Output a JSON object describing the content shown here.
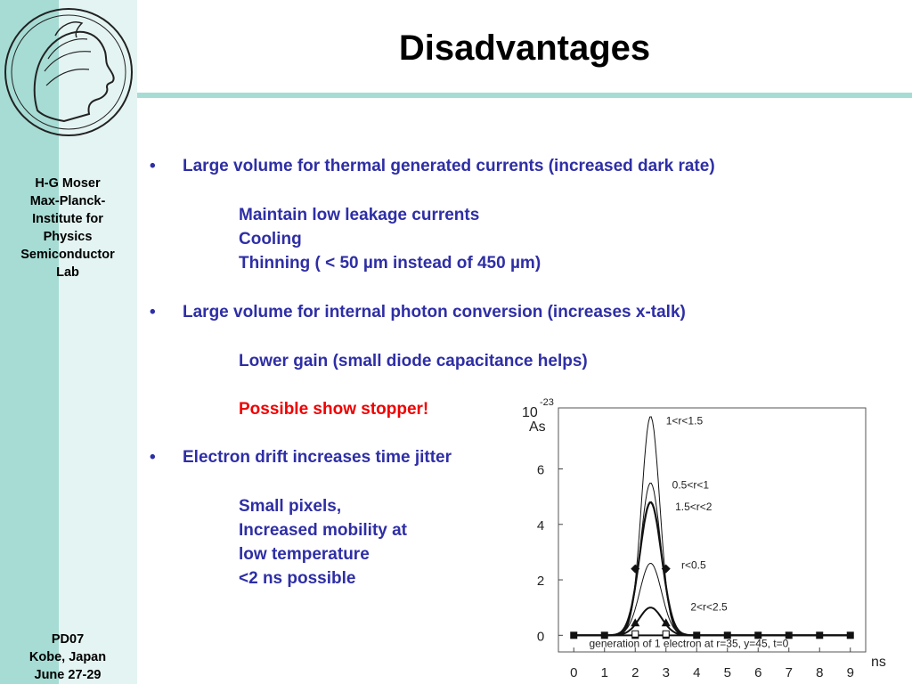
{
  "sidebar": {
    "info_lines": [
      "H-G Moser",
      "Max-Planck-",
      "Institute for",
      "Physics",
      "Semiconductor",
      "Lab"
    ],
    "footer_lines": [
      "PD07",
      "Kobe, Japan",
      "June 27-29"
    ]
  },
  "slide": {
    "title": "Disadvantages",
    "bullet_char": "•",
    "lines": [
      {
        "text": "Large volume for thermal generated currents (increased dark rate)"
      },
      {
        "text": "Maintain low leakage currents"
      },
      {
        "text": "Cooling"
      },
      {
        "text": "Thinning ( < 50 µm instead of 450 µm)"
      },
      {
        "text": "Large volume for internal photon conversion (increases x-talk)"
      },
      {
        "text": "Lower gain (small diode capacitance helps)"
      },
      {
        "text": "Possible show stopper!"
      },
      {
        "text": "Electron drift increases time jitter"
      },
      {
        "text": "Small pixels,"
      },
      {
        "text": "Increased mobility at"
      },
      {
        "text": "low temperature"
      },
      {
        "text": "<2 ns possible"
      }
    ]
  },
  "colors": {
    "text_blue": "#2e2ea6",
    "text_red": "#ee0000",
    "sidebar_dark": "#a6dcd4",
    "sidebar_light": "#e4f4f2"
  },
  "chart_data": {
    "type": "line",
    "y_exponent_label": "10",
    "y_exponent": "-23",
    "y_unit": "As",
    "x_unit": "ns",
    "xlim": [
      -0.5,
      9.5
    ],
    "ylim": [
      -0.6,
      8.2
    ],
    "x_ticks": [
      "0",
      "1",
      "2",
      "3",
      "4",
      "5",
      "6",
      "7",
      "8",
      "9"
    ],
    "y_ticks": [
      "0",
      "2",
      "4",
      "6"
    ],
    "annotation": "generation of 1 electron at r=35, y=45, t=0",
    "series": [
      {
        "name": "1<r<1.5",
        "peak_x": 2.5,
        "peak": 7.9,
        "width": 0.42,
        "stroke_width": 1
      },
      {
        "name": "0.5<r<1",
        "peak_x": 2.5,
        "peak": 5.5,
        "width": 0.46,
        "stroke_width": 1
      },
      {
        "name": "1.5<r<2",
        "peak_x": 2.5,
        "peak": 4.8,
        "width": 0.5,
        "stroke_width": 2.2
      },
      {
        "name": "r<0.5",
        "peak_x": 2.5,
        "peak": 2.6,
        "width": 0.5,
        "stroke_width": 1
      },
      {
        "name": "2<r<2.5",
        "peak_x": 2.5,
        "peak": 1.0,
        "width": 0.52,
        "stroke_width": 2
      }
    ],
    "baseline_markers_x": [
      0,
      1,
      2,
      3,
      4,
      5,
      6,
      7,
      8,
      9
    ],
    "labels_pos": [
      {
        "text": "1<r<1.5",
        "x": 3.0,
        "y": 7.6
      },
      {
        "text": "0.5<r<1",
        "x": 3.2,
        "y": 5.3
      },
      {
        "text": "1.5<r<2",
        "x": 3.3,
        "y": 4.5
      },
      {
        "text": "r<0.5",
        "x": 3.5,
        "y": 2.4
      },
      {
        "text": "2<r<2.5",
        "x": 3.8,
        "y": 0.9
      }
    ]
  }
}
